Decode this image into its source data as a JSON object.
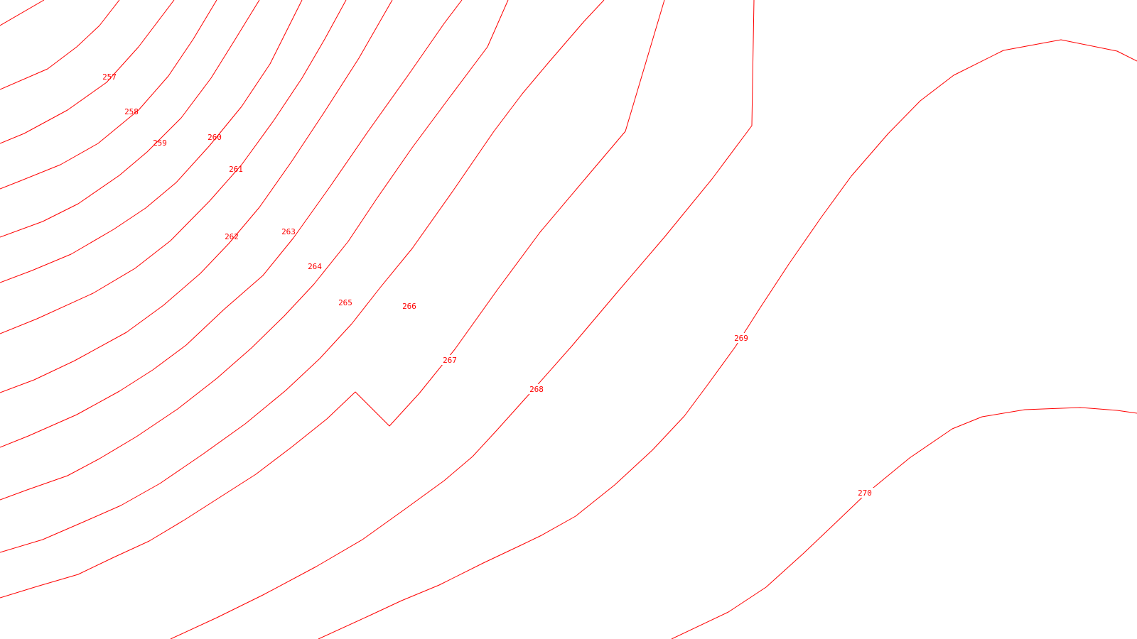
{
  "map": {
    "background_color": "#ffffff",
    "line_color": "#ff0000",
    "label_color": "#ff0000",
    "contours": [
      {
        "elevation": "257"
      },
      {
        "elevation": "258"
      },
      {
        "elevation": "259"
      },
      {
        "elevation": "260"
      },
      {
        "elevation": "261"
      },
      {
        "elevation": "262"
      },
      {
        "elevation": "263"
      },
      {
        "elevation": "264"
      },
      {
        "elevation": "265"
      },
      {
        "elevation": "266"
      },
      {
        "elevation": "267"
      },
      {
        "elevation": "268"
      },
      {
        "elevation": "269"
      },
      {
        "elevation": "270"
      }
    ]
  }
}
